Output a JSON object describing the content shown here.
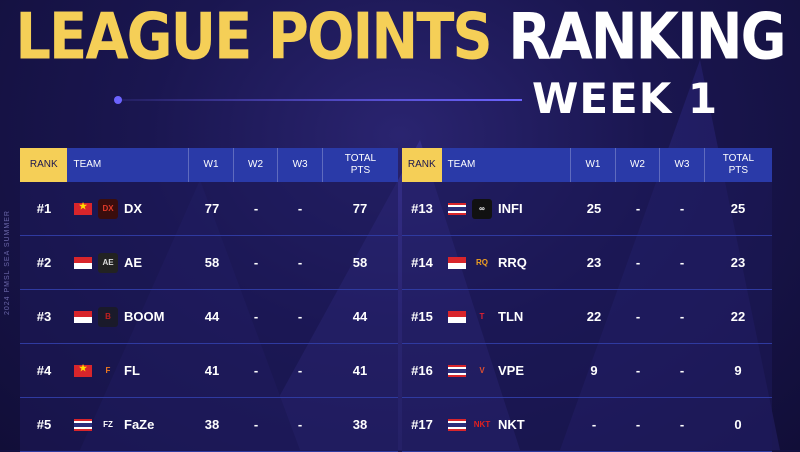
{
  "title": {
    "part1": "LEAGUE POINTS",
    "part2": "RANKING",
    "week": "WEEK 1"
  },
  "side_text": "2024 PMSL SEA SUMMER",
  "headers": {
    "rank": "RANK",
    "team": "TEAM",
    "w1": "W1",
    "w2": "W2",
    "w3": "W3",
    "total_line1": "TOTAL",
    "total_line2": "PTS"
  },
  "colors": {
    "gold": "#f5cf57",
    "header_blue": "#2a3aa8",
    "background": "#1a1650"
  },
  "left_rows": [
    {
      "rank": "#1",
      "flag": "vietnam",
      "logo": "dx-logo",
      "team": "DX",
      "w1": "77",
      "w2": "-",
      "w3": "-",
      "total": "77"
    },
    {
      "rank": "#2",
      "flag": "indonesia",
      "logo": "ae-logo",
      "team": "AE",
      "w1": "58",
      "w2": "-",
      "w3": "-",
      "total": "58"
    },
    {
      "rank": "#3",
      "flag": "indonesia",
      "logo": "boom-logo",
      "team": "BOOM",
      "w1": "44",
      "w2": "-",
      "w3": "-",
      "total": "44"
    },
    {
      "rank": "#4",
      "flag": "vietnam",
      "logo": "flash-logo",
      "team": "FL",
      "w1": "41",
      "w2": "-",
      "w3": "-",
      "total": "41"
    },
    {
      "rank": "#5",
      "flag": "thailand",
      "logo": "faze-logo",
      "team": "FaZe",
      "w1": "38",
      "w2": "-",
      "w3": "-",
      "total": "38"
    }
  ],
  "right_rows": [
    {
      "rank": "#13",
      "flag": "thailand",
      "logo": "infi-logo",
      "team": "INFI",
      "w1": "25",
      "w2": "-",
      "w3": "-",
      "total": "25"
    },
    {
      "rank": "#14",
      "flag": "indonesia",
      "logo": "rrq-logo",
      "team": "RRQ",
      "w1": "23",
      "w2": "-",
      "w3": "-",
      "total": "23"
    },
    {
      "rank": "#15",
      "flag": "indonesia",
      "logo": "tln-logo",
      "team": "TLN",
      "w1": "22",
      "w2": "-",
      "w3": "-",
      "total": "22"
    },
    {
      "rank": "#16",
      "flag": "thailand",
      "logo": "vpe-logo",
      "team": "VPE",
      "w1": "9",
      "w2": "-",
      "w3": "-",
      "total": "9"
    },
    {
      "rank": "#17",
      "flag": "thailand",
      "logo": "nkt-logo",
      "team": "NKT",
      "w1": "-",
      "w2": "-",
      "w3": "-",
      "total": "0"
    }
  ]
}
